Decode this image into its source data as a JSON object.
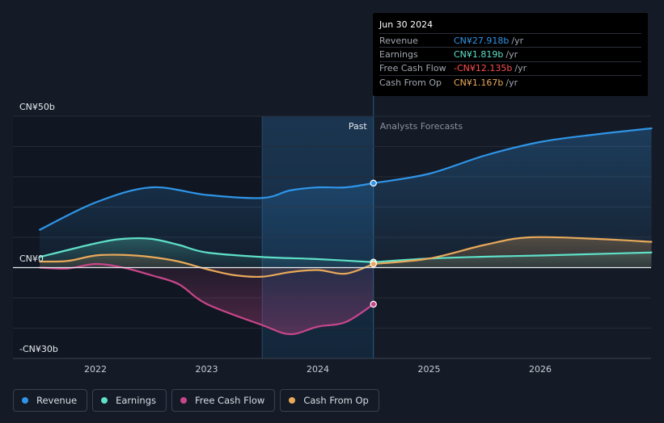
{
  "colors": {
    "revenue": "#2f95e8",
    "earnings": "#5fe0c8",
    "fcf": "#c8468a",
    "cfo": "#e8a95a"
  },
  "tooltip": {
    "date": "Jun 30 2024",
    "rows": [
      {
        "label": "Revenue",
        "value": "CN¥27.918b",
        "unit": "/yr"
      },
      {
        "label": "Earnings",
        "value": "CN¥1.819b",
        "unit": "/yr"
      },
      {
        "label": "Free Cash Flow",
        "value": "-CN¥12.135b",
        "unit": "/yr"
      },
      {
        "label": "Cash From Op",
        "value": "CN¥1.167b",
        "unit": "/yr"
      }
    ]
  },
  "legend": [
    "Revenue",
    "Earnings",
    "Free Cash Flow",
    "Cash From Op"
  ],
  "chart_data": {
    "type": "line",
    "y_unit": "CN¥ billions",
    "ylim": [
      -30,
      50
    ],
    "y_ticks_labeled": [
      {
        "value": 50,
        "label": "CN¥50b"
      },
      {
        "value": 0,
        "label": "CN¥0"
      },
      {
        "value": -30,
        "label": "-CN¥30b"
      }
    ],
    "xlim": [
      2021.5,
      2027.0
    ],
    "x_ticks": [
      {
        "value": 2022,
        "label": "2022"
      },
      {
        "value": 2023,
        "label": "2023"
      },
      {
        "value": 2024,
        "label": "2024"
      },
      {
        "value": 2025,
        "label": "2025"
      },
      {
        "value": 2026,
        "label": "2026"
      }
    ],
    "past_label": "Past",
    "forecast_label": "Analysts Forecasts",
    "past_end": 2024.5,
    "highlight_start": 2023.5,
    "series": [
      {
        "name": "Revenue",
        "key": "revenue",
        "past": [
          [
            2021.5,
            12.5
          ],
          [
            2022.0,
            21.5
          ],
          [
            2022.5,
            26.5
          ],
          [
            2023.0,
            24.0
          ],
          [
            2023.5,
            23.0
          ],
          [
            2023.75,
            25.5
          ],
          [
            2024.0,
            26.5
          ],
          [
            2024.25,
            26.5
          ],
          [
            2024.5,
            27.9
          ]
        ],
        "forecast": [
          [
            2024.5,
            27.9
          ],
          [
            2025.0,
            31.0
          ],
          [
            2025.5,
            37.0
          ],
          [
            2026.0,
            41.5
          ],
          [
            2026.5,
            44.0
          ],
          [
            2027.0,
            46.0
          ]
        ]
      },
      {
        "name": "Earnings",
        "key": "earnings",
        "past": [
          [
            2021.5,
            3.5
          ],
          [
            2022.0,
            8.0
          ],
          [
            2022.25,
            9.5
          ],
          [
            2022.5,
            9.5
          ],
          [
            2022.75,
            7.5
          ],
          [
            2023.0,
            5.0
          ],
          [
            2023.5,
            3.5
          ],
          [
            2024.0,
            2.8
          ],
          [
            2024.5,
            1.8
          ]
        ],
        "forecast": [
          [
            2024.5,
            1.8
          ],
          [
            2025.0,
            3.0
          ],
          [
            2025.5,
            3.6
          ],
          [
            2026.0,
            4.0
          ],
          [
            2027.0,
            5.0
          ]
        ]
      },
      {
        "name": "Free Cash Flow",
        "key": "fcf",
        "past": [
          [
            2021.5,
            0.0
          ],
          [
            2021.75,
            -0.3
          ],
          [
            2022.0,
            1.2
          ],
          [
            2022.25,
            0.0
          ],
          [
            2022.5,
            -2.5
          ],
          [
            2022.75,
            -5.5
          ],
          [
            2023.0,
            -12.0
          ],
          [
            2023.5,
            -19.0
          ],
          [
            2023.75,
            -22.0
          ],
          [
            2024.0,
            -19.5
          ],
          [
            2024.25,
            -18.0
          ],
          [
            2024.5,
            -12.1
          ]
        ],
        "forecast": []
      },
      {
        "name": "Cash From Op",
        "key": "cfo",
        "past": [
          [
            2021.5,
            2.0
          ],
          [
            2021.75,
            2.2
          ],
          [
            2022.0,
            4.0
          ],
          [
            2022.25,
            4.2
          ],
          [
            2022.5,
            3.5
          ],
          [
            2022.75,
            2.0
          ],
          [
            2023.0,
            -0.5
          ],
          [
            2023.25,
            -2.5
          ],
          [
            2023.5,
            -3.0
          ],
          [
            2023.75,
            -1.5
          ],
          [
            2024.0,
            -0.8
          ],
          [
            2024.25,
            -2.0
          ],
          [
            2024.5,
            1.2
          ]
        ],
        "forecast": [
          [
            2024.5,
            1.2
          ],
          [
            2025.0,
            3.0
          ],
          [
            2025.5,
            7.5
          ],
          [
            2025.9,
            10.0
          ],
          [
            2026.5,
            9.5
          ],
          [
            2027.0,
            8.5
          ]
        ]
      }
    ]
  }
}
